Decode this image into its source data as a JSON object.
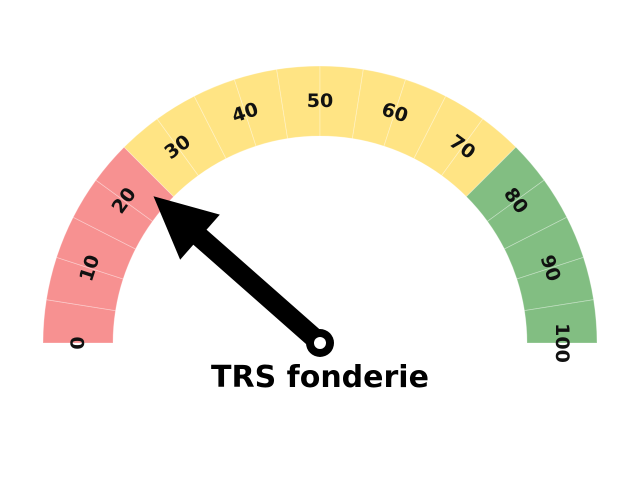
{
  "chart_data": {
    "type": "gauge",
    "title": "TRS fonderie",
    "min": 0,
    "max": 100,
    "value": 23,
    "tick_labels": [
      "0",
      "10",
      "20",
      "30",
      "40",
      "50",
      "60",
      "70",
      "80",
      "90",
      "100"
    ],
    "bands": [
      {
        "from": 0,
        "to": 25,
        "color": "#f79191"
      },
      {
        "from": 25,
        "to": 75,
        "color": "#ffe484"
      },
      {
        "from": 75,
        "to": 100,
        "color": "#82be82"
      }
    ],
    "needle_color": "#000000"
  }
}
